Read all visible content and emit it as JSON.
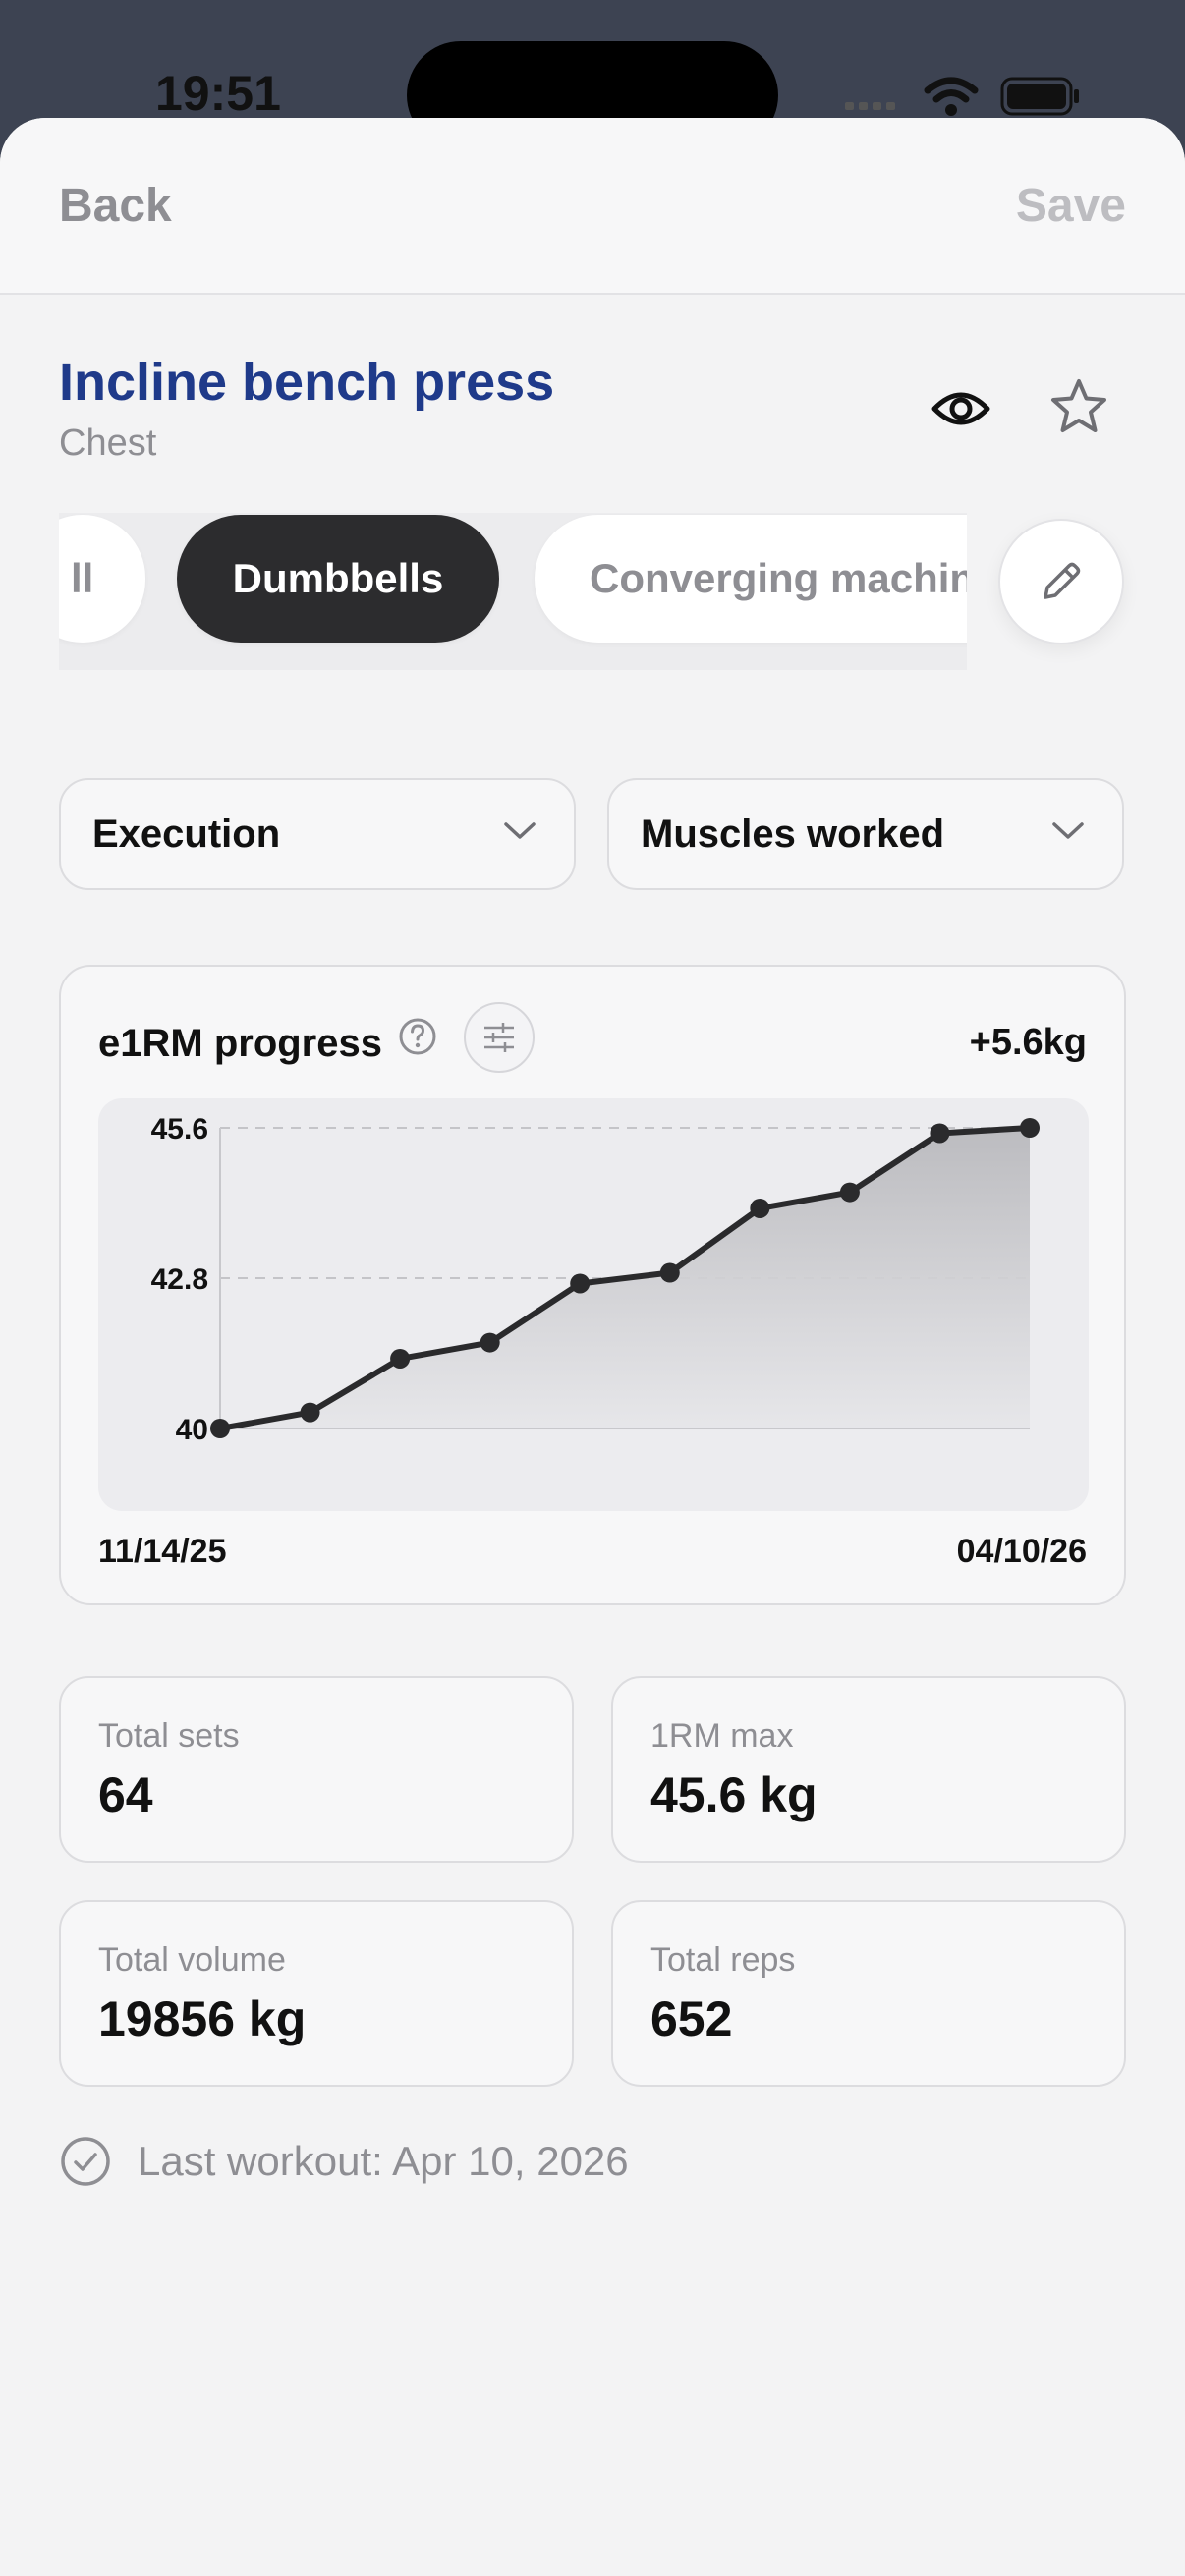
{
  "status": {
    "time": "19:51"
  },
  "nav": {
    "back_label": "Back",
    "save_label": "Save"
  },
  "exercise": {
    "title": "Incline bench press",
    "muscle_group": "Chest"
  },
  "equipment": {
    "chips": [
      {
        "label": "ll",
        "selected": false
      },
      {
        "label": "Dumbbells",
        "selected": true
      },
      {
        "label": "Converging machine",
        "selected": false
      }
    ]
  },
  "dropdowns": {
    "execution": "Execution",
    "muscles": "Muscles worked"
  },
  "progress_card": {
    "title": "e1RM progress",
    "delta": "+5.6kg",
    "x_start": "11/14/25",
    "x_end": "04/10/26"
  },
  "chart_data": {
    "type": "area",
    "title": "e1RM progress",
    "y_ticks": [
      "45.6",
      "42.8",
      "40"
    ],
    "ylim": [
      40,
      45.6
    ],
    "values": [
      40.0,
      40.3,
      41.3,
      41.6,
      42.7,
      42.9,
      44.1,
      44.4,
      45.5,
      45.6
    ],
    "x_range_labels": [
      "11/14/25",
      "04/10/26"
    ],
    "grid": "dashed horizontal at 42.8 and 45.6"
  },
  "stats": {
    "total_sets": {
      "label": "Total sets",
      "value": "64"
    },
    "one_rm_max": {
      "label": "1RM max",
      "value": "45.6 kg"
    },
    "total_volume": {
      "label": "Total volume",
      "value": "19856 kg"
    },
    "total_reps": {
      "label": "Total reps",
      "value": "652"
    }
  },
  "last_workout": {
    "text": "Last workout: Apr 10, 2026"
  },
  "icons": {
    "visibility": "eye-icon",
    "favorite": "star-icon",
    "edit": "pencil-icon",
    "help": "question-circle-icon",
    "filter": "sliders-icon",
    "dropdown": "chevron-down-icon",
    "check": "check-circle-icon"
  },
  "colors": {
    "title_accent": "#1f3a8a",
    "chip_active": "#2c2c2e",
    "line": "#2a2a2c"
  }
}
